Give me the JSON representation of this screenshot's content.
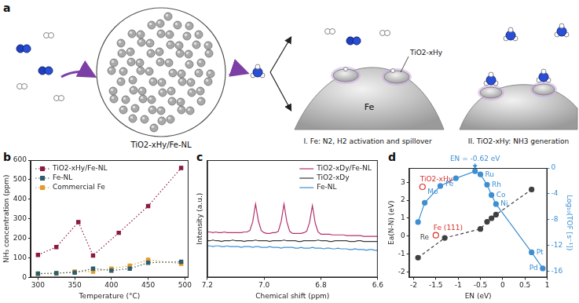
{
  "panels": [
    "a",
    "b",
    "c",
    "d"
  ],
  "diagram": {
    "label": "TiO2-xHy/Fe-NL",
    "step1": "I. Fe: N2, H2 activation and spillover",
    "step1_metal": "Fe",
    "step1_tag": "TiO2-xHy",
    "step2": "II. TiO2-xHy: NH3 generation"
  },
  "chart_data": [
    {
      "type": "line",
      "xlabel": "Temperature (°C)",
      "ylabel": "NH₃ concentration (ppm)",
      "xlim": [
        290,
        505
      ],
      "xticks": [
        300,
        350,
        400,
        450,
        500
      ],
      "ylim": [
        0,
        600
      ],
      "yticks": [
        0,
        100,
        200,
        300,
        400,
        500,
        600
      ],
      "grid": false,
      "legend": "top-left",
      "marker": "square",
      "line_style": "dotted",
      "series": [
        {
          "name": "TiO2-xHy/Fe-NL",
          "color": "#8c1a3c",
          "x": [
            300,
            325,
            355,
            375,
            410,
            450,
            495
          ],
          "values": [
            115,
            155,
            283,
            112,
            228,
            365,
            560
          ]
        },
        {
          "name": "Fe-NL",
          "color": "#2f5d6b",
          "x": [
            300,
            325,
            350,
            375,
            400,
            425,
            450,
            495
          ],
          "values": [
            20,
            22,
            25,
            45,
            35,
            45,
            75,
            80
          ]
        },
        {
          "name": "Commercial Fe",
          "color": "#e39b2d",
          "x": [
            300,
            325,
            350,
            375,
            400,
            425,
            450,
            495
          ],
          "values": [
            18,
            20,
            30,
            30,
            45,
            60,
            90,
            70
          ]
        }
      ]
    },
    {
      "type": "line",
      "xlabel": "Chemical shift (ppm)",
      "ylabel": "Intensity (a.u.)",
      "xlim": [
        7.2,
        6.6
      ],
      "xticks": [
        7.2,
        {
          "value": 7,
          "label": "7.0"
        },
        6.8,
        6.6
      ],
      "ylim": [
        0,
        1.6
      ],
      "tick_labels": "x",
      "grid": false,
      "legend": "top-right",
      "marker": "none",
      "line_style": "solid",
      "x": [
        7.2,
        7.19,
        7.18,
        7.17,
        7.16,
        7.15,
        7.14,
        7.13,
        7.12,
        7.11,
        7.1,
        7.09,
        7.08,
        7.07,
        7.06,
        7.05,
        7.04,
        7.03,
        7.02,
        7.01,
        7,
        6.99,
        6.98,
        6.97,
        6.96,
        6.95,
        6.94,
        6.93,
        6.92,
        6.91,
        6.9,
        6.89,
        6.88,
        6.87,
        6.86,
        6.85,
        6.84,
        6.83,
        6.82,
        6.81,
        6.8,
        6.79,
        6.78,
        6.77,
        6.76,
        6.75,
        6.74,
        6.73,
        6.72,
        6.71,
        6.7,
        6.69,
        6.68,
        6.67,
        6.66,
        6.65,
        6.64,
        6.63,
        6.62,
        6.61,
        6.6
      ],
      "series": [
        {
          "name": "TiO2-xDy/Fe-NL",
          "color": "#b3306f",
          "values": [
            0.62,
            0.62,
            0.61,
            0.62,
            0.61,
            0.61,
            0.62,
            0.61,
            0.61,
            0.61,
            0.61,
            0.61,
            0.61,
            0.62,
            0.62,
            0.64,
            0.76,
            1.0,
            0.77,
            0.64,
            0.61,
            0.6,
            0.6,
            0.61,
            0.61,
            0.63,
            0.76,
            1.0,
            0.76,
            0.63,
            0.6,
            0.6,
            0.6,
            0.6,
            0.61,
            0.63,
            0.75,
            0.98,
            0.74,
            0.62,
            0.59,
            0.59,
            0.59,
            0.59,
            0.58,
            0.58,
            0.58,
            0.58,
            0.58,
            0.57,
            0.57,
            0.57,
            0.57,
            0.57,
            0.57,
            0.56,
            0.56,
            0.56,
            0.56,
            0.56,
            0.56
          ]
        },
        {
          "name": "TiO2-xDy",
          "color": "#3a3a3a",
          "values": [
            0.5,
            0.5,
            0.51,
            0.5,
            0.5,
            0.49,
            0.5,
            0.5,
            0.5,
            0.51,
            0.5,
            0.5,
            0.5,
            0.49,
            0.5,
            0.5,
            0.5,
            0.51,
            0.5,
            0.5,
            0.5,
            0.5,
            0.49,
            0.5,
            0.5,
            0.5,
            0.5,
            0.51,
            0.5,
            0.5,
            0.5,
            0.5,
            0.49,
            0.49,
            0.5,
            0.5,
            0.5,
            0.5,
            0.5,
            0.51,
            0.5,
            0.5,
            0.5,
            0.49,
            0.49,
            0.5,
            0.5,
            0.5,
            0.5,
            0.5,
            0.49,
            0.49,
            0.49,
            0.5,
            0.5,
            0.49,
            0.49,
            0.49,
            0.49,
            0.49,
            0.49
          ]
        },
        {
          "name": "Fe-NL",
          "color": "#3d8fd1",
          "values": [
            0.43,
            0.43,
            0.42,
            0.43,
            0.43,
            0.42,
            0.42,
            0.43,
            0.42,
            0.42,
            0.42,
            0.42,
            0.41,
            0.42,
            0.42,
            0.42,
            0.41,
            0.42,
            0.42,
            0.41,
            0.41,
            0.41,
            0.42,
            0.41,
            0.41,
            0.41,
            0.4,
            0.41,
            0.41,
            0.41,
            0.41,
            0.4,
            0.4,
            0.41,
            0.4,
            0.4,
            0.4,
            0.41,
            0.4,
            0.4,
            0.4,
            0.39,
            0.4,
            0.4,
            0.39,
            0.39,
            0.4,
            0.39,
            0.39,
            0.39,
            0.38,
            0.38,
            0.39,
            0.38,
            0.38,
            0.38,
            0.37,
            0.38,
            0.38,
            0.37,
            0.37
          ]
        }
      ]
    },
    {
      "type": "scatter",
      "xlabel": "EN (eV)",
      "ylabel": "Ea(N-N) (eV)",
      "y2label": "Log₁₀(TOF [s⁻¹])",
      "xlim": [
        -2.1,
        1
      ],
      "xticks": [
        -2,
        -1.5,
        -1,
        -0.5,
        0,
        0.5,
        1
      ],
      "ylim": [
        -2.3,
        3.8
      ],
      "yticks": [
        -2,
        -1,
        0,
        1,
        2,
        3
      ],
      "y2lim": [
        -17,
        0
      ],
      "y2ticks": [
        -16,
        -12,
        -8,
        -4,
        0
      ],
      "grid": false,
      "annotations": [
        {
          "text": "EN = -0.62 eV",
          "x": -0.62
        }
      ],
      "series": [
        {
          "axis": "y2",
          "color": "#3d8fd1",
          "marker": "circle",
          "line_style": "solid",
          "x": [
            -1.9,
            -1.75,
            -1.4,
            -1.05,
            -0.62,
            -0.5,
            -0.35,
            -0.25,
            -0.15,
            0.65,
            0.9
          ],
          "values": [
            -8.4,
            -5.4,
            -2.8,
            -1.6,
            -0.5,
            -1.0,
            -2.6,
            -4.2,
            -5.6,
            -13.1,
            -15.6
          ],
          "point_labels": [
            null,
            null,
            "Mo",
            "Fe",
            null,
            "Ru",
            "Rh",
            "Co",
            "Ni",
            "Pt",
            "Pd"
          ]
        },
        {
          "axis": "y",
          "color": "#404040",
          "marker": "circle",
          "line_style": "dashed",
          "x": [
            -1.9,
            -1.3,
            -0.5,
            -0.35,
            -0.25,
            -0.15,
            0.65
          ],
          "values": [
            -1.2,
            -0.1,
            0.4,
            0.8,
            1.0,
            1.2,
            2.6
          ],
          "point_labels": [
            null,
            "Re",
            null,
            null,
            null,
            null,
            null
          ]
        },
        {
          "axis": "y",
          "color": "#d7302a",
          "marker": "open_circle",
          "line_style": "none",
          "x": [
            -1.8,
            -1.5
          ],
          "values": [
            2.75,
            0.05
          ],
          "point_labels": [
            "TiO2-xHy",
            "Fe (111)"
          ]
        }
      ]
    }
  ]
}
